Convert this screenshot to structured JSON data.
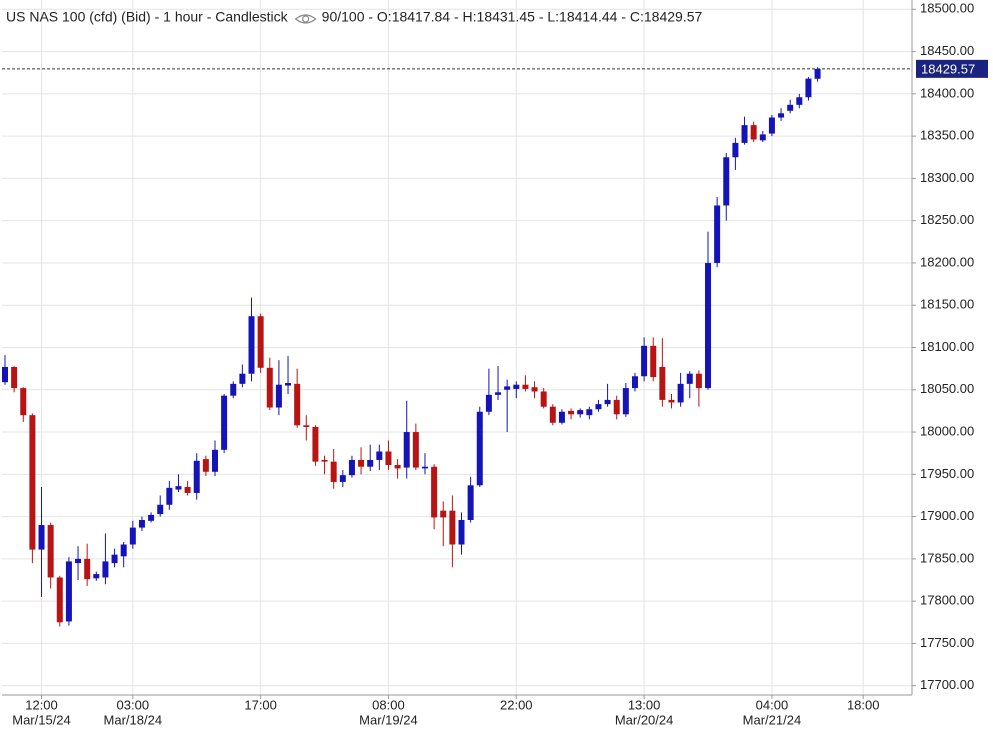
{
  "chart_data": {
    "type": "candlestick",
    "title": "US NAS 100 (cfd) (Bid) - 1 hour - Candlestick",
    "info": "90/100 - O:18417.84 - H:18431.45 - L:18414.44 - C:18429.57",
    "categories": [
      null,
      null,
      null,
      null,
      "12:00",
      null,
      null,
      null,
      null,
      null,
      null,
      null,
      null,
      null,
      "03:00",
      null,
      null,
      null,
      null,
      null,
      null,
      null,
      null,
      null,
      null,
      null,
      null,
      null,
      "17:00",
      null,
      null,
      null,
      null,
      null,
      null,
      null,
      null,
      null,
      null,
      null,
      null,
      null,
      "08:00",
      null,
      null,
      null,
      null,
      null,
      null,
      null,
      null,
      null,
      null,
      null,
      null,
      null,
      "22:00",
      null,
      null,
      null,
      null,
      null,
      null,
      null,
      null,
      null,
      null,
      null,
      null,
      null,
      "13:00",
      null,
      null,
      null,
      null,
      null,
      null,
      null,
      null,
      null,
      null,
      null,
      null,
      null,
      "04:00",
      null,
      null,
      null,
      null,
      null,
      null,
      null,
      null,
      null,
      "18:00",
      null,
      null,
      null,
      null,
      null
    ],
    "dates": [
      null,
      null,
      null,
      null,
      "Mar/15/24",
      null,
      null,
      null,
      null,
      null,
      null,
      null,
      null,
      null,
      "Mar/18/24",
      null,
      null,
      null,
      null,
      null,
      null,
      null,
      null,
      null,
      null,
      null,
      null,
      null,
      null,
      null,
      null,
      null,
      null,
      null,
      null,
      null,
      null,
      null,
      null,
      null,
      null,
      null,
      "Mar/19/24",
      null,
      null,
      null,
      null,
      null,
      null,
      null,
      null,
      null,
      null,
      null,
      null,
      null,
      null,
      null,
      null,
      null,
      null,
      null,
      null,
      null,
      null,
      null,
      null,
      null,
      null,
      null,
      "Mar/20/24",
      null,
      null,
      null,
      null,
      null,
      null,
      null,
      null,
      null,
      null,
      null,
      null,
      null,
      "Mar/21/24",
      null,
      null,
      null,
      null,
      null,
      null,
      null,
      null,
      null,
      null,
      null,
      null,
      null,
      null,
      null
    ],
    "open": [
      18059,
      18077,
      18052,
      18020,
      17861,
      17890,
      17828,
      17776,
      17845,
      17850,
      17827,
      17828,
      17845,
      17853,
      17867,
      17887,
      17895,
      17903,
      17914,
      17932,
      17935,
      17928,
      17968,
      17953,
      17979,
      18043,
      18057,
      18069,
      18137,
      18076,
      18029,
      18055,
      18057,
      18008,
      18006,
      17967,
      17965,
      17941,
      17949,
      17967,
      17959,
      17967,
      17977,
      17961,
      17958,
      18000,
      17957,
      17959,
      17907,
      17907,
      17867,
      17896,
      17937,
      18024,
      18044,
      18050,
      18051,
      18056,
      18053,
      18048,
      18030,
      18011,
      18025,
      18021,
      18020,
      18027,
      18033,
      18038,
      18021,
      18052,
      18066,
      18102,
      18077,
      18038,
      18035,
      18057,
      18069,
      18052,
      18200,
      18268,
      18325,
      18342,
      18363,
      18345,
      18353,
      18372,
      18380,
      18387,
      18396,
      18417.84,
      null,
      null,
      null,
      null,
      null,
      null,
      null,
      null,
      null,
      null
    ],
    "high": [
      18091,
      18078,
      18053,
      18022,
      17935,
      17893,
      17830,
      17852,
      17865,
      17868,
      17835,
      17880,
      17862,
      17870,
      17895,
      17900,
      17905,
      17925,
      17942,
      17950,
      17942,
      17975,
      17972,
      17990,
      18045,
      18060,
      18080,
      18159,
      18140,
      18088,
      18085,
      18090,
      18075,
      18020,
      18008,
      17972,
      17980,
      17955,
      17972,
      17982,
      17985,
      17985,
      17990,
      17968,
      18037,
      18010,
      17975,
      17962,
      17918,
      17925,
      17905,
      17947,
      18030,
      18075,
      18078,
      18062,
      18060,
      18067,
      18060,
      18052,
      18033,
      18027,
      18028,
      18028,
      18030,
      18038,
      18057,
      18043,
      18058,
      18070,
      18112,
      18112,
      18111,
      18045,
      18070,
      18072,
      18073,
      18237,
      18278,
      18330,
      18348,
      18373,
      18367,
      18356,
      18375,
      18383,
      18393,
      18400,
      18420,
      18431.45,
      null,
      null,
      null,
      null,
      null,
      null,
      null,
      null,
      null,
      null
    ],
    "low": [
      18056,
      18047,
      18012,
      17845,
      17805,
      17815,
      17770,
      17771,
      17825,
      17818,
      17824,
      17820,
      17840,
      17840,
      17862,
      17883,
      17893,
      17900,
      17908,
      17929,
      17925,
      17920,
      17948,
      17948,
      17975,
      18040,
      18053,
      18060,
      18070,
      18026,
      18020,
      18045,
      18005,
      17990,
      17960,
      17950,
      17933,
      17935,
      17946,
      17950,
      17954,
      17955,
      17955,
      17945,
      17945,
      17955,
      17950,
      17885,
      17865,
      17840,
      17855,
      17893,
      17935,
      18020,
      18038,
      18000,
      18040,
      18048,
      18040,
      18028,
      18008,
      18009,
      18015,
      18017,
      18015,
      18024,
      18030,
      18015,
      18018,
      18048,
      18060,
      18060,
      18030,
      18028,
      18030,
      18040,
      18030,
      18050,
      18195,
      18250,
      18310,
      18340,
      18343,
      18343,
      18350,
      18368,
      18377,
      18383,
      18392,
      18414.44,
      null,
      null,
      null,
      null,
      null,
      null,
      null,
      null,
      null,
      null
    ],
    "close": [
      18077,
      18052,
      18020,
      17861,
      17890,
      17828,
      17775,
      17847,
      17850,
      17826,
      17832,
      17847,
      17855,
      17867,
      17887,
      17896,
      17902,
      17914,
      17934,
      17936,
      17928,
      17966,
      17953,
      17979,
      18043,
      18057,
      18069,
      18137,
      18076,
      18029,
      18056,
      18058,
      18008,
      18006,
      17965,
      17965,
      17941,
      17949,
      17967,
      17959,
      17967,
      17977,
      17961,
      17957,
      18000,
      17958,
      17959,
      17899,
      17899,
      17867,
      17896,
      17937,
      18024,
      18044,
      18047,
      18054,
      18056,
      18051,
      18048,
      18030,
      18011,
      18024,
      18021,
      18026,
      18027,
      18033,
      18038,
      18021,
      18052,
      18066,
      18102,
      18065,
      18038,
      18035,
      18057,
      18069,
      18052,
      18200,
      18268,
      18325,
      18342,
      18363,
      18346,
      18352,
      18372,
      18377,
      18387,
      18396,
      18418,
      18429.57,
      null,
      null,
      null,
      null,
      null,
      null,
      null,
      null,
      null,
      null
    ],
    "up_color": "#1414b8",
    "down_color": "#b81414",
    "ylim": [
      17689,
      18511
    ],
    "yticks": [
      {
        "value": 17700,
        "label": "17700.00"
      },
      {
        "value": 17750,
        "label": "17750.00"
      },
      {
        "value": 17800,
        "label": "17800.00"
      },
      {
        "value": 17850,
        "label": "17850.00"
      },
      {
        "value": 17900,
        "label": "17900.00"
      },
      {
        "value": 17950,
        "label": "17950.00"
      },
      {
        "value": 18000,
        "label": "18000.00"
      },
      {
        "value": 18050,
        "label": "18050.00"
      },
      {
        "value": 18100,
        "label": "18100.00"
      },
      {
        "value": 18150,
        "label": "18150.00"
      },
      {
        "value": 18200,
        "label": "18200.00"
      },
      {
        "value": 18250,
        "label": "18250.00"
      },
      {
        "value": 18300,
        "label": "18300.00"
      },
      {
        "value": 18350,
        "label": "18350.00"
      },
      {
        "value": 18400,
        "label": "18400.00"
      },
      {
        "value": 18450,
        "label": "18450.00"
      },
      {
        "value": 18500,
        "label": "18500.00"
      }
    ],
    "grid": true
  }
}
